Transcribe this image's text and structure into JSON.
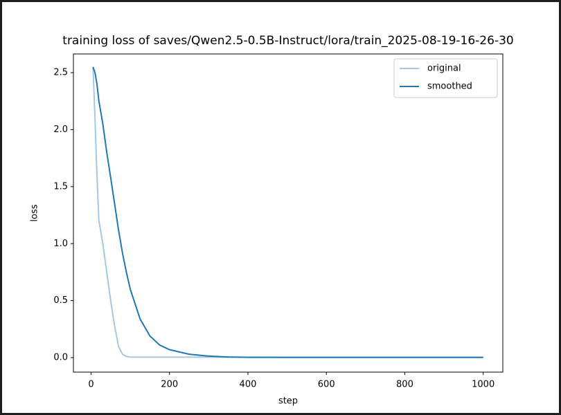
{
  "chart_data": {
    "type": "line",
    "title": "training loss of saves/Qwen2.5-0.5B-Instruct/lora/train_2025-08-19-16-26-30",
    "xlabel": "step",
    "ylabel": "loss",
    "x": [
      5,
      10,
      15,
      20,
      30,
      40,
      50,
      60,
      70,
      80,
      90,
      100,
      125,
      150,
      175,
      200,
      250,
      300,
      350,
      400,
      500,
      600,
      700,
      800,
      900,
      1000
    ],
    "series": [
      {
        "name": "original",
        "color": "#a5c8e1",
        "values": [
          2.55,
          2.1,
          1.6,
          1.2,
          1.0,
          0.75,
          0.5,
          0.28,
          0.1,
          0.03,
          0.01,
          0.005,
          0.004,
          0.004,
          0.004,
          0.004,
          0.004,
          0.004,
          0.004,
          0.004,
          0.004,
          0.004,
          0.004,
          0.004,
          0.004,
          0.004
        ]
      },
      {
        "name": "smoothed",
        "color": "#1f77b4",
        "values": [
          2.55,
          2.5,
          2.4,
          2.25,
          2.05,
          1.8,
          1.58,
          1.35,
          1.12,
          0.92,
          0.75,
          0.6,
          0.34,
          0.19,
          0.11,
          0.07,
          0.03,
          0.013,
          0.006,
          0.003,
          0.002,
          0.002,
          0.002,
          0.002,
          0.002,
          0.002
        ]
      }
    ],
    "xlim": [
      -45,
      1050
    ],
    "ylim": [
      -0.127,
      2.664
    ],
    "xticks": [
      0,
      200,
      400,
      600,
      800,
      1000
    ],
    "yticks": [
      {
        "value": 0,
        "label": "0.0"
      },
      0.5,
      {
        "value": 1,
        "label": "1.0"
      },
      1.5,
      {
        "value": 2,
        "label": "2.0"
      },
      2.5
    ],
    "legend": "upper right"
  }
}
